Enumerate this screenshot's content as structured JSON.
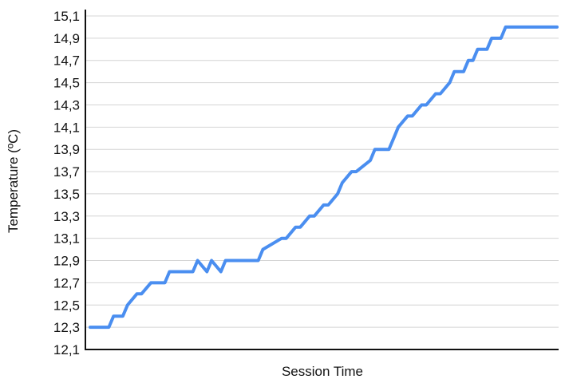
{
  "chart_data": {
    "type": "line",
    "title": "",
    "xlabel": "Session Time",
    "ylabel": "Temperature (ºC)",
    "ylim": [
      12.1,
      15.1
    ],
    "yticks": [
      "12,1",
      "12,3",
      "12,5",
      "12,7",
      "12,9",
      "13,1",
      "13,3",
      "13,5",
      "13,7",
      "13,9",
      "14,1",
      "14,3",
      "14,5",
      "14,7",
      "14,9",
      "15,1"
    ],
    "grid": true,
    "legend": "none",
    "line_color": "#4a8ef0",
    "series": [
      {
        "x": [
          0,
          4,
          5,
          7,
          8,
          10,
          11,
          13,
          14,
          16,
          17,
          22,
          23,
          25,
          26,
          28,
          29,
          30,
          31,
          36,
          37,
          41,
          42,
          44,
          45,
          47,
          48,
          50,
          51,
          53,
          54,
          56,
          57,
          60,
          61,
          62,
          64,
          65,
          66,
          68,
          69,
          71,
          72,
          74,
          75,
          77,
          78,
          80,
          81,
          82,
          83,
          85,
          86,
          88,
          89,
          90,
          91,
          92,
          93,
          94,
          95,
          96,
          97,
          98,
          99,
          100
        ],
        "values": [
          12.3,
          12.3,
          12.4,
          12.4,
          12.5,
          12.6,
          12.6,
          12.7,
          12.7,
          12.7,
          12.8,
          12.8,
          12.9,
          12.8,
          12.9,
          12.8,
          12.9,
          12.9,
          12.9,
          12.9,
          13.0,
          13.1,
          13.1,
          13.2,
          13.2,
          13.3,
          13.3,
          13.4,
          13.4,
          13.5,
          13.6,
          13.7,
          13.7,
          13.8,
          13.9,
          13.9,
          13.9,
          14.0,
          14.1,
          14.2,
          14.2,
          14.3,
          14.3,
          14.4,
          14.4,
          14.5,
          14.6,
          14.6,
          14.7,
          14.7,
          14.8,
          14.8,
          14.9,
          14.9,
          15.0,
          15.0,
          15.0,
          15.0,
          15.0,
          15.0,
          15.0,
          15.0,
          15.0,
          15.0,
          15.0,
          15.0
        ]
      }
    ]
  }
}
